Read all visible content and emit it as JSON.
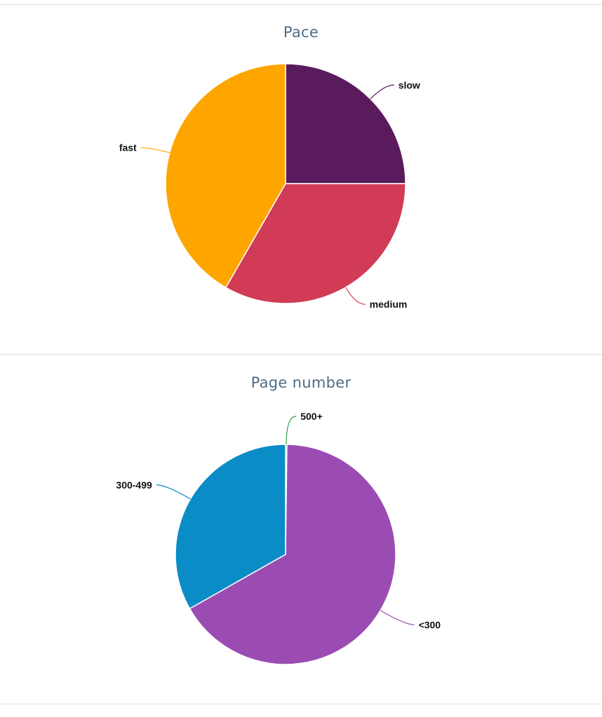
{
  "chart_data": [
    {
      "type": "pie",
      "title": "Pace",
      "categories": [
        "slow",
        "medium",
        "fast"
      ],
      "values": [
        25,
        33.3,
        41.7
      ],
      "colors": [
        "#5a1b5c",
        "#d23b55",
        "#ffa500"
      ]
    },
    {
      "type": "pie",
      "title": "Page number",
      "categories": [
        "500+",
        "<300",
        "300-499"
      ],
      "values": [
        0.2,
        66.6,
        33.2
      ],
      "colors": [
        "#2e9c4b",
        "#9b4cb3",
        "#0a8cc7"
      ]
    }
  ]
}
